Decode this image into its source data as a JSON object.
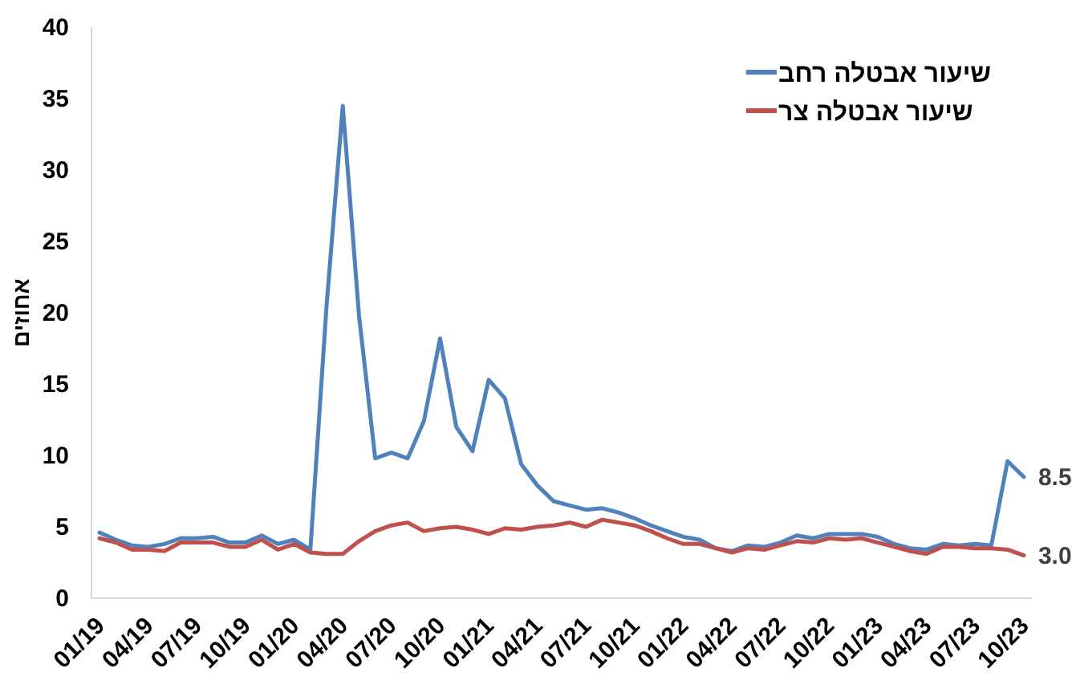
{
  "chart_data": {
    "type": "line",
    "ylabel": "אחוזים",
    "categories": [
      "01/19",
      null,
      null,
      "04/19",
      null,
      null,
      "07/19",
      null,
      null,
      "10/19",
      null,
      null,
      "01/20",
      null,
      null,
      "04/20",
      null,
      null,
      "07/20",
      null,
      null,
      "10/20",
      null,
      null,
      "01/21",
      null,
      null,
      "04/21",
      null,
      null,
      "07/21",
      null,
      null,
      "10/21",
      null,
      null,
      "01/22",
      null,
      null,
      "04/22",
      null,
      null,
      "07/22",
      null,
      null,
      "10/22",
      null,
      null,
      "01/23",
      null,
      null,
      "04/23",
      null,
      null,
      "07/23",
      null,
      null,
      "10/23"
    ],
    "series": [
      {
        "name": "שיעור אבטלה רחב",
        "color": "#4f81bd",
        "values": [
          4.6,
          4.1,
          3.7,
          3.6,
          3.8,
          4.2,
          4.2,
          4.3,
          3.9,
          3.9,
          4.4,
          3.8,
          4.1,
          3.4,
          20.5,
          34.5,
          19.8,
          9.8,
          10.2,
          9.8,
          12.4,
          18.2,
          12.0,
          10.3,
          15.3,
          14.0,
          9.4,
          7.9,
          6.8,
          6.5,
          6.2,
          6.3,
          6.0,
          5.6,
          5.1,
          4.7,
          4.3,
          4.1,
          3.5,
          3.3,
          3.7,
          3.6,
          3.9,
          4.4,
          4.2,
          4.5,
          4.5,
          4.5,
          4.3,
          3.8,
          3.5,
          3.4,
          3.8,
          3.7,
          3.8,
          3.7,
          9.6,
          8.5
        ],
        "value_labels": [
          null,
          null,
          null,
          null,
          null,
          null,
          null,
          null,
          null,
          null,
          null,
          null,
          null,
          null,
          null,
          null,
          null,
          null,
          null,
          null,
          null,
          null,
          null,
          null,
          null,
          null,
          null,
          null,
          null,
          null,
          null,
          null,
          null,
          null,
          null,
          null,
          null,
          null,
          null,
          null,
          null,
          null,
          null,
          null,
          null,
          null,
          null,
          null,
          null,
          null,
          null,
          null,
          null,
          null,
          null,
          null,
          null,
          "8.5"
        ]
      },
      {
        "name": "שיעור אבטלה צר",
        "color": "#c0504d",
        "values": [
          4.2,
          3.9,
          3.4,
          3.4,
          3.3,
          3.9,
          3.9,
          3.9,
          3.6,
          3.6,
          4.1,
          3.4,
          3.8,
          3.2,
          3.1,
          3.1,
          4.0,
          4.7,
          5.1,
          5.3,
          4.7,
          4.9,
          5.0,
          4.8,
          4.5,
          4.9,
          4.8,
          5.0,
          5.1,
          5.3,
          5.0,
          5.5,
          5.3,
          5.1,
          4.7,
          4.2,
          3.8,
          3.8,
          3.5,
          3.2,
          3.5,
          3.4,
          3.7,
          4.0,
          3.9,
          4.2,
          4.1,
          4.2,
          3.9,
          3.6,
          3.3,
          3.1,
          3.6,
          3.6,
          3.5,
          3.5,
          3.4,
          3.0
        ],
        "value_labels": [
          null,
          null,
          null,
          null,
          null,
          null,
          null,
          null,
          null,
          null,
          null,
          null,
          null,
          null,
          null,
          null,
          null,
          null,
          null,
          null,
          null,
          null,
          null,
          null,
          null,
          null,
          null,
          null,
          null,
          null,
          null,
          null,
          null,
          null,
          null,
          null,
          null,
          null,
          null,
          null,
          null,
          null,
          null,
          null,
          null,
          null,
          null,
          null,
          null,
          null,
          null,
          null,
          null,
          null,
          null,
          null,
          null,
          "3.0"
        ]
      }
    ],
    "ylim": [
      0,
      40
    ],
    "yticks": [
      0,
      5,
      10,
      15,
      20,
      25,
      30,
      35,
      40
    ],
    "legend": "top right"
  }
}
